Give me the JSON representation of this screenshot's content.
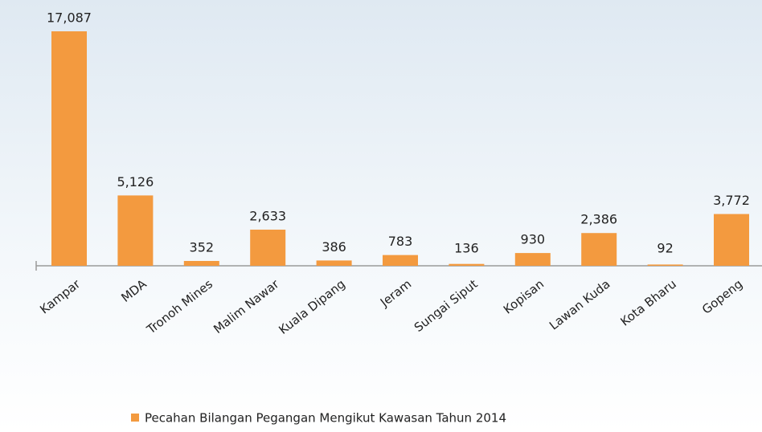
{
  "chart_data": {
    "type": "bar",
    "categories": [
      "Kampar",
      "MDA",
      "Tronoh Mines",
      "Malim Nawar",
      "Kuala Dipang",
      "Jeram",
      "Sungai Siput",
      "Kopisan",
      "Lawan Kuda",
      "Kota Bharu",
      "Gopeng"
    ],
    "series": [
      {
        "name": "Pecahan Bilangan Pegangan Mengikut Kawasan Tahun 2014",
        "color": "#f39a3f",
        "values": [
          17087,
          5126,
          352,
          2633,
          386,
          783,
          136,
          930,
          2386,
          92,
          3772
        ],
        "value_labels": [
          "17,087",
          "5,126",
          "352",
          "2,633",
          "386",
          "783",
          "136",
          "930",
          "2,386",
          "92",
          "3,772"
        ]
      }
    ],
    "legend": "bottom"
  }
}
